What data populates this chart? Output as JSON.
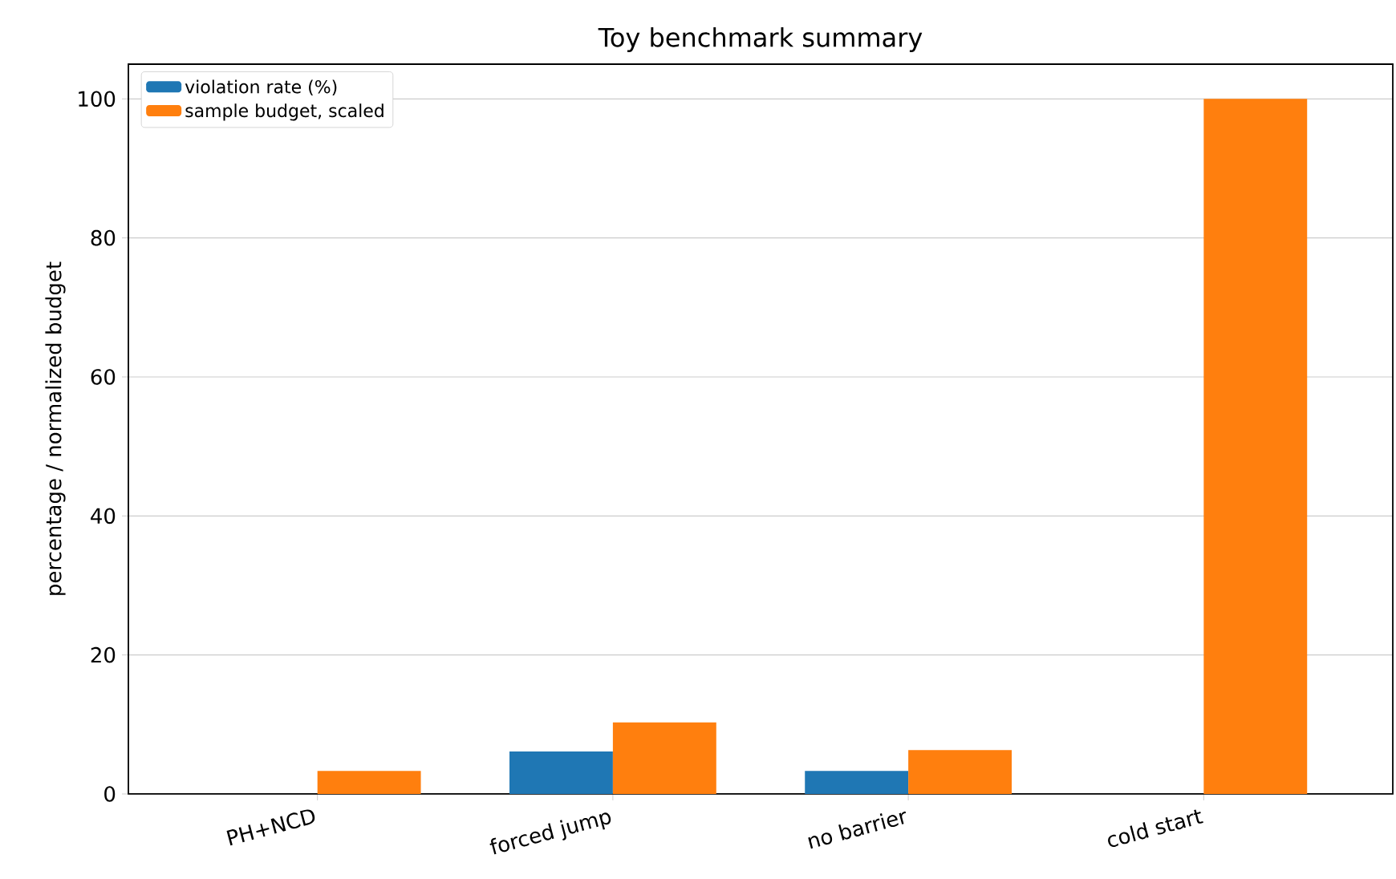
{
  "chart_data": {
    "type": "bar",
    "title": "Toy benchmark summary",
    "ylabel": "percentage / normalized budget",
    "categories": [
      "PH+NCD",
      "forced jump",
      "no barrier",
      "cold start"
    ],
    "series": [
      {
        "name": "violation rate (%)",
        "color": "#1f77b4",
        "values": [
          0,
          6.1,
          3.3,
          0
        ]
      },
      {
        "name": "sample budget, scaled",
        "color": "#ff7f0e",
        "values": [
          3.3,
          10.3,
          6.3,
          100
        ]
      }
    ],
    "ylim": [
      0,
      105
    ],
    "yticks": [
      0,
      20,
      40,
      60,
      80,
      100
    ],
    "grid": "y",
    "legend": "top left"
  }
}
